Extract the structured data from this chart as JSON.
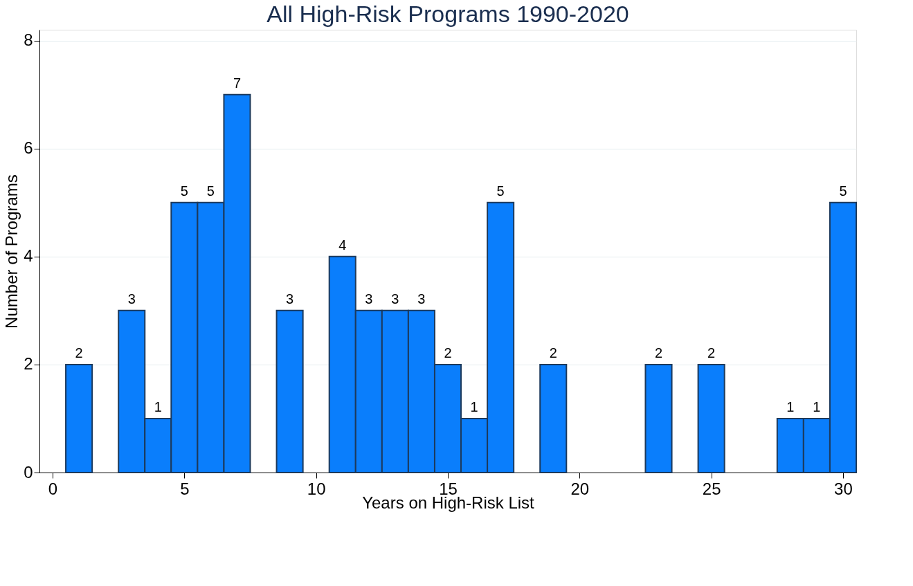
{
  "chart_data": {
    "type": "histogram",
    "title": "All High-Risk Programs 1990-2020",
    "xlabel": "Years on High-Risk List",
    "ylabel": "Number of Programs",
    "bins": [
      0.5,
      1.5,
      2.5,
      3.5,
      4.5,
      5.5,
      6.5,
      7.5,
      8.5,
      9.5,
      10.5,
      11.5,
      12.5,
      13.5,
      14.5,
      15.5,
      16.5,
      17.5,
      18.5,
      19.5,
      20.5,
      21.5,
      22.5,
      23.5,
      24.5,
      25.5,
      26.5,
      27.5,
      28.5,
      29.5,
      30.5
    ],
    "values": [
      2,
      0,
      3,
      1,
      5,
      5,
      7,
      0,
      3,
      0,
      4,
      3,
      3,
      3,
      2,
      1,
      5,
      0,
      2,
      0,
      0,
      0,
      2,
      0,
      2,
      0,
      0,
      1,
      1,
      5
    ],
    "value_labels": [
      "2",
      null,
      "3",
      "1",
      "5",
      "5",
      "7",
      null,
      "3",
      null,
      "4",
      "3",
      "3",
      "3",
      "2",
      "1",
      "5",
      null,
      "2",
      null,
      null,
      null,
      "2",
      null,
      "2",
      null,
      null,
      "1",
      "1",
      "5"
    ],
    "color": "#0a7efc",
    "xlim": [
      -0.5,
      30.5
    ],
    "xticks": [
      0,
      5,
      10,
      15,
      20,
      25,
      30
    ],
    "ylim": [
      0,
      8.2
    ],
    "yticks": [
      0,
      2,
      4,
      6,
      8
    ],
    "grid": "y"
  }
}
